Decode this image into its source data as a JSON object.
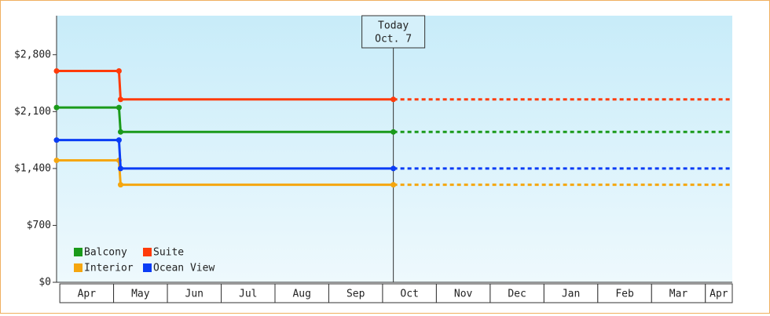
{
  "chart_data": {
    "type": "line",
    "categories": [
      "Apr",
      "May",
      "Jun",
      "Jul",
      "Aug",
      "Sep",
      "Oct",
      "Nov",
      "Dec",
      "Jan",
      "Feb",
      "Mar",
      "Apr"
    ],
    "xlim": [
      -0.06,
      12.5
    ],
    "ylim": [
      0,
      3280
    ],
    "yticks": [
      {
        "value": 0,
        "label": "$0"
      },
      {
        "value": 700,
        "label": "$700"
      },
      {
        "value": 1400,
        "label": "$1,400"
      },
      {
        "value": 2100,
        "label": "$2,100"
      },
      {
        "value": 2800,
        "label": "$2,800"
      }
    ],
    "grid": false,
    "today": {
      "x": 6.2,
      "label": "Today",
      "date": "Oct. 7"
    },
    "series": [
      {
        "name": "Balcony",
        "color": "#1a9a1a",
        "x": [
          -0.06,
          1.1,
          1.13,
          6.2
        ],
        "values": [
          2150,
          2150,
          1850,
          1850
        ]
      },
      {
        "name": "Suite",
        "color": "#ff3b0a",
        "x": [
          -0.06,
          1.1,
          1.13,
          6.2
        ],
        "values": [
          2600,
          2600,
          2250,
          2250
        ]
      },
      {
        "name": "Interior",
        "color": "#f5a60f",
        "x": [
          -0.06,
          1.1,
          1.13,
          6.2
        ],
        "values": [
          1500,
          1500,
          1200,
          1200
        ]
      },
      {
        "name": "Ocean View",
        "color": "#0a3cf5",
        "x": [
          -0.06,
          1.1,
          1.13,
          6.2
        ],
        "values": [
          1750,
          1750,
          1400,
          1400
        ]
      }
    ]
  }
}
